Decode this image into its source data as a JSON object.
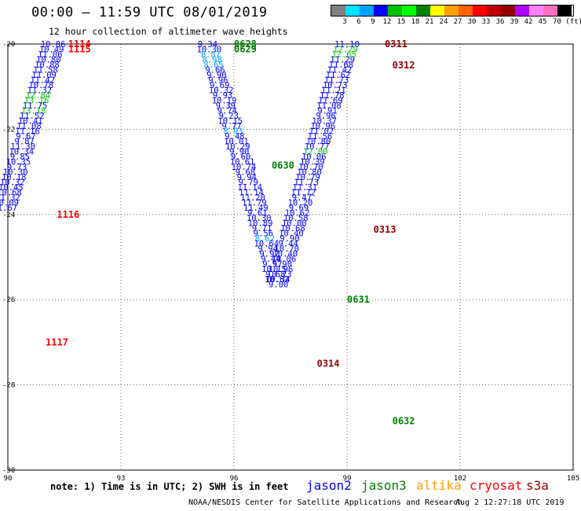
{
  "header": {
    "title": "00:00 – 11:59 UTC 08/01/2019",
    "subtitle": "12 hour collection of altimeter wave heights"
  },
  "color_scale": {
    "colors": [
      "#808080",
      "#00e0ff",
      "#00a0ff",
      "#0000ff",
      "#00c000",
      "#00ff00",
      "#008000",
      "#ffff00",
      "#ffa000",
      "#ff6000",
      "#ff0000",
      "#c00000",
      "#900000",
      "#b000ff",
      "#ff80ff",
      "#ff70c0",
      "#000000"
    ],
    "labels": [
      "3",
      "6",
      "9",
      "12",
      "15",
      "18",
      "21",
      "24",
      "27",
      "30",
      "33",
      "36",
      "39",
      "42",
      "45",
      "70 (ft)"
    ],
    "units": "(ft)"
  },
  "axes": {
    "x_ticks": [
      "90",
      "93",
      "96",
      "99",
      "102",
      "105"
    ],
    "y_ticks": [
      "-20",
      "-22",
      "-24",
      "-26",
      "-28",
      "-30"
    ]
  },
  "footer": {
    "note": "note: 1) Time is in UTC; 2) SWH is in feet",
    "satellites": [
      {
        "name": "jason2",
        "color": "#0000ff"
      },
      {
        "name": "jason3",
        "color": "#008000"
      },
      {
        "name": "altika",
        "color": "#ffa000"
      },
      {
        "name": "cryosat",
        "color": "#ff0000"
      },
      {
        "name": "s3a",
        "color": "#900000"
      }
    ],
    "credit": "NOAA/NESDIS Center for Satellite Applications and Research",
    "generated": "Aug  2 12:27:18 UTC 2019"
  },
  "chart_data": {
    "type": "scatter",
    "title": "00:00 – 11:59 UTC 08/01/2019",
    "subtitle": "12 hour collection of altimeter wave heights",
    "xlabel": "",
    "ylabel": "",
    "xlim": [
      90,
      105
    ],
    "ylim": [
      -30,
      -20
    ],
    "grid": true,
    "legend": "bottom",
    "tracks": [
      {
        "satellite": "cryosat",
        "color": "#ff0000",
        "time_labels": [
          {
            "text": "1114",
            "lon": 91.6,
            "lat": -20.0
          },
          {
            "text": "1115",
            "lon": 91.6,
            "lat": -20.12
          },
          {
            "text": "1116",
            "lon": 91.3,
            "lat": -24.0
          },
          {
            "text": "1117",
            "lon": 91.0,
            "lat": -27.0
          }
        ],
        "points": [
          {
            "lon": 91.2,
            "lat": -20.0,
            "swh": "10.86"
          },
          {
            "lon": 91.16,
            "lat": -20.12,
            "swh": "10.49"
          },
          {
            "lon": 91.12,
            "lat": -20.24,
            "swh": "11.06"
          },
          {
            "lon": 91.08,
            "lat": -20.36,
            "swh": "10.80"
          },
          {
            "lon": 91.04,
            "lat": -20.48,
            "swh": "10.88"
          },
          {
            "lon": 91.0,
            "lat": -20.6,
            "swh": "11.58"
          },
          {
            "lon": 90.96,
            "lat": -20.72,
            "swh": "11.09"
          },
          {
            "lon": 90.92,
            "lat": -20.84,
            "swh": "11.42"
          },
          {
            "lon": 90.88,
            "lat": -20.96,
            "swh": "10.78"
          },
          {
            "lon": 90.84,
            "lat": -21.08,
            "swh": "11.32"
          },
          {
            "lon": 90.8,
            "lat": -21.2,
            "swh": "12.84"
          },
          {
            "lon": 90.76,
            "lat": -21.32,
            "swh": "13.16"
          },
          {
            "lon": 90.72,
            "lat": -21.44,
            "swh": "11.75"
          },
          {
            "lon": 90.68,
            "lat": -21.56,
            "swh": "13.18"
          },
          {
            "lon": 90.64,
            "lat": -21.68,
            "swh": "11.52"
          },
          {
            "lon": 90.6,
            "lat": -21.8,
            "swh": "10.41"
          },
          {
            "lon": 90.56,
            "lat": -21.92,
            "swh": "11.08"
          },
          {
            "lon": 90.52,
            "lat": -22.04,
            "swh": "11.16"
          },
          {
            "lon": 90.48,
            "lat": -22.16,
            "swh": "9.67"
          },
          {
            "lon": 90.44,
            "lat": -22.28,
            "swh": "9.87"
          },
          {
            "lon": 90.4,
            "lat": -22.4,
            "swh": "11.30"
          },
          {
            "lon": 90.36,
            "lat": -22.52,
            "swh": "10.34"
          },
          {
            "lon": 90.32,
            "lat": -22.64,
            "swh": "9.85"
          },
          {
            "lon": 90.28,
            "lat": -22.76,
            "swh": "10.35"
          },
          {
            "lon": 90.24,
            "lat": -22.88,
            "swh": "9.73"
          },
          {
            "lon": 90.2,
            "lat": -23.0,
            "swh": "10.30"
          },
          {
            "lon": 90.16,
            "lat": -23.12,
            "swh": "10.18"
          },
          {
            "lon": 90.12,
            "lat": -23.24,
            "swh": "10.32"
          },
          {
            "lon": 90.08,
            "lat": -23.36,
            "swh": "10.45"
          },
          {
            "lon": 90.04,
            "lat": -23.48,
            "swh": "10.68"
          },
          {
            "lon": 90.0,
            "lat": -23.6,
            "swh": "11.32"
          },
          {
            "lon": 89.96,
            "lat": -23.72,
            "swh": "10.09"
          },
          {
            "lon": 89.92,
            "lat": -23.84,
            "swh": "11.67"
          }
        ]
      },
      {
        "satellite": "jason3",
        "color": "#008000",
        "time_labels": [
          {
            "text": "0628",
            "lon": 96.0,
            "lat": -20.0
          },
          {
            "text": "0629",
            "lon": 96.0,
            "lat": -20.12
          },
          {
            "text": "0630",
            "lon": 97.0,
            "lat": -22.85
          },
          {
            "text": "0631",
            "lon": 99.0,
            "lat": -26.0
          },
          {
            "text": "0632",
            "lon": 100.2,
            "lat": -28.85
          }
        ],
        "points": [
          {
            "lon": 95.3,
            "lat": -20.0,
            "swh": "9.34"
          },
          {
            "lon": 95.34,
            "lat": -20.12,
            "swh": "10.30"
          },
          {
            "lon": 95.38,
            "lat": -20.24,
            "swh": "8.87"
          },
          {
            "lon": 95.42,
            "lat": -20.36,
            "swh": "8.98"
          },
          {
            "lon": 95.46,
            "lat": -20.48,
            "swh": "8.65"
          },
          {
            "lon": 95.5,
            "lat": -20.6,
            "swh": "9.66"
          },
          {
            "lon": 95.54,
            "lat": -20.72,
            "swh": "9.90"
          },
          {
            "lon": 95.58,
            "lat": -20.84,
            "swh": "9.96"
          },
          {
            "lon": 95.62,
            "lat": -20.96,
            "swh": "9.69"
          },
          {
            "lon": 95.66,
            "lat": -21.08,
            "swh": "10.32"
          },
          {
            "lon": 95.7,
            "lat": -21.2,
            "swh": "9.93"
          },
          {
            "lon": 95.74,
            "lat": -21.32,
            "swh": "10.19"
          },
          {
            "lon": 95.78,
            "lat": -21.44,
            "swh": "9.39"
          },
          {
            "lon": 95.82,
            "lat": -21.56,
            "swh": "9.74"
          },
          {
            "lon": 95.86,
            "lat": -21.68,
            "swh": "9.23"
          },
          {
            "lon": 95.9,
            "lat": -21.8,
            "swh": "10.15"
          },
          {
            "lon": 95.94,
            "lat": -21.92,
            "swh": "9.77"
          },
          {
            "lon": 95.98,
            "lat": -22.04,
            "swh": "8.93"
          },
          {
            "lon": 96.02,
            "lat": -22.16,
            "swh": "9.48"
          },
          {
            "lon": 96.06,
            "lat": -22.28,
            "swh": "10.01"
          },
          {
            "lon": 96.1,
            "lat": -22.4,
            "swh": "10.29"
          },
          {
            "lon": 96.14,
            "lat": -22.52,
            "swh": "9.90"
          },
          {
            "lon": 96.18,
            "lat": -22.64,
            "swh": "9.60"
          },
          {
            "lon": 96.22,
            "lat": -22.76,
            "swh": "10.61"
          },
          {
            "lon": 96.26,
            "lat": -22.88,
            "swh": "10.74"
          },
          {
            "lon": 96.3,
            "lat": -23.0,
            "swh": "9.68"
          },
          {
            "lon": 96.34,
            "lat": -23.12,
            "swh": "9.94"
          },
          {
            "lon": 96.38,
            "lat": -23.24,
            "swh": "9.79"
          },
          {
            "lon": 96.42,
            "lat": -23.36,
            "swh": "11.14"
          },
          {
            "lon": 96.46,
            "lat": -23.48,
            "swh": "11.14"
          },
          {
            "lon": 96.5,
            "lat": -23.6,
            "swh": "11.20"
          },
          {
            "lon": 96.54,
            "lat": -23.72,
            "swh": "11.79"
          },
          {
            "lon": 96.58,
            "lat": -23.84,
            "swh": "11.49"
          },
          {
            "lon": 96.62,
            "lat": -23.96,
            "swh": "9.61"
          },
          {
            "lon": 96.66,
            "lat": -24.08,
            "swh": "10.30"
          },
          {
            "lon": 96.7,
            "lat": -24.2,
            "swh": "10.89"
          },
          {
            "lon": 96.74,
            "lat": -24.32,
            "swh": "9.71"
          },
          {
            "lon": 96.78,
            "lat": -24.44,
            "swh": "9.56"
          },
          {
            "lon": 96.82,
            "lat": -24.56,
            "swh": "8.62"
          },
          {
            "lon": 96.86,
            "lat": -24.68,
            "swh": "10.64"
          },
          {
            "lon": 96.9,
            "lat": -24.8,
            "swh": "9.94"
          },
          {
            "lon": 96.94,
            "lat": -24.92,
            "swh": "9.97"
          },
          {
            "lon": 96.98,
            "lat": -25.04,
            "swh": "9.44"
          },
          {
            "lon": 97.02,
            "lat": -25.16,
            "swh": "9.57"
          },
          {
            "lon": 97.06,
            "lat": -25.28,
            "swh": "10.15"
          },
          {
            "lon": 97.1,
            "lat": -25.4,
            "swh": "9.68"
          },
          {
            "lon": 97.14,
            "lat": -25.52,
            "swh": "10.62"
          },
          {
            "lon": 97.18,
            "lat": -25.64,
            "swh": "9.00"
          }
        ]
      },
      {
        "satellite": "s3a",
        "color": "#900000",
        "time_labels": [
          {
            "text": "0311",
            "lon": 100.0,
            "lat": -20.0
          },
          {
            "text": "0312",
            "lon": 100.2,
            "lat": -20.5
          },
          {
            "text": "0313",
            "lon": 99.7,
            "lat": -24.35
          },
          {
            "text": "0314",
            "lon": 98.2,
            "lat": -27.5
          }
        ],
        "points": [
          {
            "lon": 99.0,
            "lat": -20.0,
            "swh": "11.10"
          },
          {
            "lon": 98.96,
            "lat": -20.12,
            "swh": "12.29"
          },
          {
            "lon": 98.92,
            "lat": -20.24,
            "swh": "12.65"
          },
          {
            "lon": 98.88,
            "lat": -20.36,
            "swh": "11.29"
          },
          {
            "lon": 98.84,
            "lat": -20.48,
            "swh": "11.68"
          },
          {
            "lon": 98.8,
            "lat": -20.6,
            "swh": "11.42"
          },
          {
            "lon": 98.76,
            "lat": -20.72,
            "swh": "11.62"
          },
          {
            "lon": 98.72,
            "lat": -20.84,
            "swh": "11.73"
          },
          {
            "lon": 98.68,
            "lat": -20.96,
            "swh": "10.73"
          },
          {
            "lon": 98.64,
            "lat": -21.08,
            "swh": "11.21"
          },
          {
            "lon": 98.6,
            "lat": -21.2,
            "swh": "11.78"
          },
          {
            "lon": 98.56,
            "lat": -21.32,
            "swh": "11.69"
          },
          {
            "lon": 98.52,
            "lat": -21.44,
            "swh": "11.08"
          },
          {
            "lon": 98.48,
            "lat": -21.56,
            "swh": "9.91"
          },
          {
            "lon": 98.44,
            "lat": -21.68,
            "swh": "9.96"
          },
          {
            "lon": 98.4,
            "lat": -21.8,
            "swh": "10.37"
          },
          {
            "lon": 98.36,
            "lat": -21.92,
            "swh": "10.96"
          },
          {
            "lon": 98.32,
            "lat": -22.04,
            "swh": "11.02"
          },
          {
            "lon": 98.28,
            "lat": -22.16,
            "swh": "11.56"
          },
          {
            "lon": 98.24,
            "lat": -22.28,
            "swh": "10.80"
          },
          {
            "lon": 98.2,
            "lat": -22.4,
            "swh": "10.77"
          },
          {
            "lon": 98.16,
            "lat": -22.52,
            "swh": "12.00"
          },
          {
            "lon": 98.12,
            "lat": -22.64,
            "swh": "10.06"
          },
          {
            "lon": 98.08,
            "lat": -22.76,
            "swh": "10.39"
          },
          {
            "lon": 98.04,
            "lat": -22.88,
            "swh": "10.70"
          },
          {
            "lon": 98.0,
            "lat": -23.0,
            "swh": "10.80"
          },
          {
            "lon": 97.96,
            "lat": -23.12,
            "swh": "10.79"
          },
          {
            "lon": 97.92,
            "lat": -23.24,
            "swh": "11.73"
          },
          {
            "lon": 97.88,
            "lat": -23.36,
            "swh": "11.31"
          },
          {
            "lon": 97.84,
            "lat": -23.48,
            "swh": "11.72"
          },
          {
            "lon": 97.8,
            "lat": -23.6,
            "swh": "9.47"
          },
          {
            "lon": 97.76,
            "lat": -23.72,
            "swh": "10.20"
          },
          {
            "lon": 97.72,
            "lat": -23.84,
            "swh": "9.69"
          },
          {
            "lon": 97.68,
            "lat": -23.96,
            "swh": "10.62"
          },
          {
            "lon": 97.64,
            "lat": -24.08,
            "swh": "10.58"
          },
          {
            "lon": 97.6,
            "lat": -24.2,
            "swh": "10.00"
          },
          {
            "lon": 97.56,
            "lat": -24.32,
            "swh": "10.68"
          },
          {
            "lon": 97.52,
            "lat": -24.44,
            "swh": "10.40"
          },
          {
            "lon": 97.48,
            "lat": -24.56,
            "swh": "9.90"
          },
          {
            "lon": 97.44,
            "lat": -24.68,
            "swh": "9.44"
          },
          {
            "lon": 97.4,
            "lat": -24.8,
            "swh": "10.70"
          },
          {
            "lon": 97.36,
            "lat": -24.92,
            "swh": "10.40"
          },
          {
            "lon": 97.32,
            "lat": -25.04,
            "swh": "10.06"
          },
          {
            "lon": 97.28,
            "lat": -25.16,
            "swh": "9.90"
          },
          {
            "lon": 97.24,
            "lat": -25.28,
            "swh": "10.96"
          },
          {
            "lon": 97.2,
            "lat": -25.4,
            "swh": "10.23"
          },
          {
            "lon": 97.16,
            "lat": -25.52,
            "swh": "10.34"
          }
        ]
      }
    ]
  }
}
